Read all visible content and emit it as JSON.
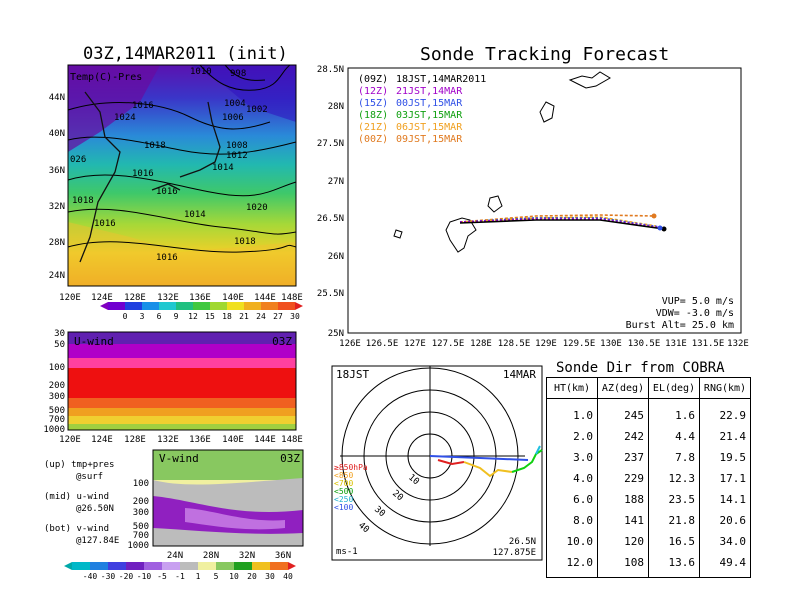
{
  "colors": {
    "accent_blue": "#1f5fd6",
    "track_black": "#000000",
    "track_purple": "#a000c8",
    "track_blue": "#3050e6",
    "track_green": "#10a010",
    "track_yellow": "#f0a020",
    "track_orange": "#e07a20"
  },
  "left": {
    "title": "03Z,14MAR2011 (init)",
    "temp_label": "Temp(C)-Pres",
    "pressure_labels": [
      "1010",
      "998",
      "1016",
      "1004",
      "1002",
      "1024",
      "1006",
      "1018",
      "1008",
      "1012",
      "026",
      "1014",
      "1016",
      "1016",
      "1018",
      "1016",
      "1014",
      "1020",
      "1018",
      "1016"
    ],
    "lat_ticks": [
      "44N",
      "40N",
      "36N",
      "32N",
      "28N",
      "24N"
    ],
    "lon_ticks": [
      "120E",
      "124E",
      "128E",
      "132E",
      "136E",
      "140E",
      "144E",
      "148E"
    ],
    "temp_cbar": [
      "0",
      "3",
      "6",
      "9",
      "12",
      "15",
      "18",
      "21",
      "24",
      "27",
      "30"
    ],
    "uwind_title": "U-wind",
    "uwind_time": "03Z",
    "pres_ticks": [
      "30",
      "50",
      "100",
      "200",
      "300",
      "500",
      "700",
      "1000"
    ],
    "uwind_lon_ticks": [
      "120E",
      "124E",
      "128E",
      "132E",
      "136E",
      "140E",
      "144E",
      "148E"
    ],
    "legend_lines": [
      "(up) tmp+pres",
      "@surf",
      "(mid) u-wind",
      "@26.50N",
      "(bot) v-wind",
      "@127.84E"
    ],
    "vwind_title": "V-wind",
    "vwind_time": "03Z",
    "vwind_pres_ticks": [
      "100",
      "200",
      "300",
      "500",
      "700",
      "1000"
    ],
    "vwind_lat_ticks": [
      "24N",
      "28N",
      "32N",
      "36N"
    ],
    "wind_cbar": [
      "-40",
      "-30",
      "-20",
      "-10",
      "-5",
      "-1",
      "1",
      "5",
      "10",
      "20",
      "30",
      "40"
    ]
  },
  "track": {
    "title": "Sonde Tracking Forecast",
    "legend": [
      {
        "code": "(09Z)",
        "time": "18JST,14MAR2011",
        "color": "#000000"
      },
      {
        "code": "(12Z)",
        "time": "21JST,14MAR",
        "color": "#a000c8"
      },
      {
        "code": "(15Z)",
        "time": "00JST,15MAR",
        "color": "#3050e6"
      },
      {
        "code": "(18Z)",
        "time": "03JST,15MAR",
        "color": "#10a010"
      },
      {
        "code": "(21Z)",
        "time": "06JST,15MAR",
        "color": "#f0a020"
      },
      {
        "code": "(00Z)",
        "time": "09JST,15MAR",
        "color": "#e07a20"
      }
    ],
    "lat_ticks": [
      "28.5N",
      "28N",
      "27.5N",
      "27N",
      "26.5N",
      "26N",
      "25.5N",
      "25N"
    ],
    "lon_ticks": [
      "126E",
      "126.5E",
      "127E",
      "127.5E",
      "128E",
      "128.5E",
      "129E",
      "129.5E",
      "130E",
      "130.5E",
      "131E",
      "131.5E",
      "132E"
    ],
    "params": [
      "VUP= 5.0 m/s",
      "VDW= -3.0 m/s",
      "Burst Alt= 25.0 km"
    ]
  },
  "hodo": {
    "time_label": "18JST",
    "date_label": "14MAR",
    "ring_labels": [
      "10",
      "20",
      "30",
      "40"
    ],
    "levels": [
      "≥850hPa",
      "<850",
      "<700",
      "<500",
      "<250",
      "<100"
    ],
    "unit": "ms-1",
    "lat": "26.5N",
    "lon": "127.875E"
  },
  "sonde_dir": {
    "title": "Sonde Dir from COBRA",
    "headers": [
      "HT(km)",
      "AZ(deg)",
      "EL(deg)",
      "RNG(km)"
    ],
    "rows": [
      [
        "1.0",
        "245",
        "1.6",
        "22.9"
      ],
      [
        "2.0",
        "242",
        "4.4",
        "21.4"
      ],
      [
        "3.0",
        "237",
        "7.8",
        "19.5"
      ],
      [
        "4.0",
        "229",
        "12.3",
        "17.1"
      ],
      [
        "6.0",
        "188",
        "23.5",
        "14.1"
      ],
      [
        "8.0",
        "141",
        "21.8",
        "20.6"
      ],
      [
        "10.0",
        "120",
        "16.5",
        "34.0"
      ],
      [
        "12.0",
        "108",
        "13.6",
        "49.4"
      ]
    ]
  }
}
